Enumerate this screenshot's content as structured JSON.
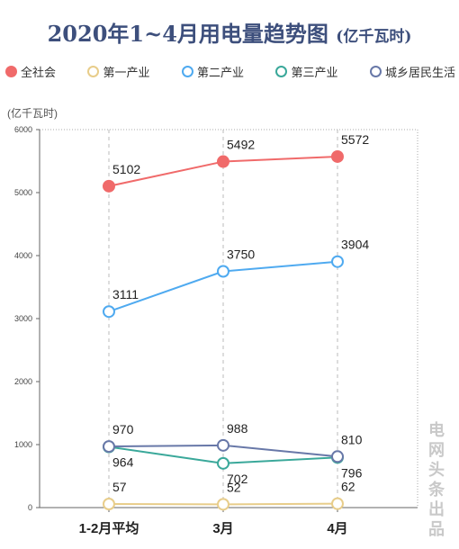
{
  "title": {
    "main": "2020年1~4月用电量趋势图",
    "unit": "(亿千瓦时)"
  },
  "watermark": "电网头条出品",
  "chart_data": {
    "type": "line",
    "title": "2020年1~4月用电量趋势图",
    "unit": "(亿千瓦时)",
    "ylabel": "(亿千瓦时)",
    "xlabel": "",
    "categories": [
      "1-2月平均",
      "3月",
      "4月"
    ],
    "ylim": [
      0,
      6000
    ],
    "yticks": [
      0,
      1000,
      2000,
      3000,
      4000,
      5000,
      6000
    ],
    "grid": "dashed vertical lines at each category",
    "legend_position": "top",
    "series": [
      {
        "name": "全社会",
        "values": [
          5102,
          5492,
          5572
        ],
        "color": "#f06a6a",
        "filled": true,
        "labels": [
          "5102",
          "5492",
          "5572"
        ],
        "label_side": [
          "above",
          "above",
          "above"
        ]
      },
      {
        "name": "第一产业",
        "values": [
          57,
          52,
          62
        ],
        "color": "#e8cd8a",
        "filled": false,
        "labels": [
          "57",
          "52",
          "62"
        ],
        "label_side": [
          "above",
          "above",
          "above"
        ]
      },
      {
        "name": "第二产业",
        "values": [
          3111,
          3750,
          3904
        ],
        "color": "#4faaf0",
        "filled": false,
        "labels": [
          "3111",
          "3750",
          "3904"
        ],
        "label_side": [
          "above",
          "above",
          "above"
        ]
      },
      {
        "name": "第三产业",
        "values": [
          964,
          702,
          796
        ],
        "color": "#3aa89a",
        "filled": false,
        "labels": [
          "964",
          "702",
          "796"
        ],
        "label_side": [
          "below",
          "below",
          "below"
        ]
      },
      {
        "name": "城乡居民生活",
        "values": [
          970,
          988,
          810
        ],
        "color": "#6878a8",
        "filled": false,
        "labels": [
          "970",
          "988",
          "810"
        ],
        "label_side": [
          "above",
          "above",
          "above"
        ]
      }
    ]
  }
}
